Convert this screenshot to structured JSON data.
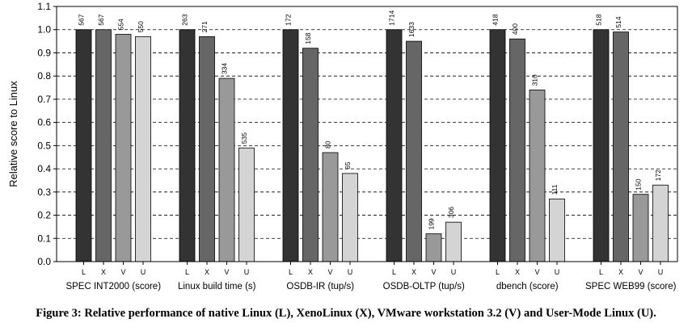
{
  "caption": "Figure 3: Relative performance of native Linux (L), XenoLinux (X), VMware workstation 3.2 (V) and User-Mode Linux (U).",
  "chart_data": {
    "type": "bar",
    "ylabel": "Relative score to Linux",
    "ylim": [
      0,
      1.1
    ],
    "yticks": [
      "0.0",
      "0.1",
      "0.2",
      "0.3",
      "0.4",
      "0.5",
      "0.6",
      "0.7",
      "0.8",
      "0.9",
      "1.0",
      "1.1"
    ],
    "grid": "horizontal dashed",
    "systems": [
      "L",
      "X",
      "V",
      "U"
    ],
    "system_colors": [
      "#333333",
      "#666666",
      "#999999",
      "#d4d4d4"
    ],
    "categories": [
      {
        "name": "SPEC INT2000 (score)",
        "relative": [
          1.0,
          1.0,
          0.98,
          0.97
        ],
        "labels": [
          "567",
          "567",
          "554",
          "550"
        ]
      },
      {
        "name": "Linux build time (s)",
        "relative": [
          1.0,
          0.97,
          0.79,
          0.49
        ],
        "labels": [
          "263",
          "271",
          "334",
          "535"
        ]
      },
      {
        "name": "OSDB-IR (tup/s)",
        "relative": [
          1.0,
          0.92,
          0.47,
          0.38
        ],
        "labels": [
          "172",
          "158",
          "80",
          "65"
        ]
      },
      {
        "name": "OSDB-OLTP (tup/s)",
        "relative": [
          1.0,
          0.95,
          0.12,
          0.17
        ],
        "labels": [
          "1714",
          "1633",
          "199",
          "306"
        ]
      },
      {
        "name": "dbench (score)",
        "relative": [
          1.0,
          0.96,
          0.74,
          0.27
        ],
        "labels": [
          "418",
          "400",
          "310",
          "111"
        ]
      },
      {
        "name": "SPEC WEB99 (score)",
        "relative": [
          1.0,
          0.99,
          0.29,
          0.33
        ],
        "labels": [
          "518",
          "514",
          "150",
          "172"
        ]
      }
    ]
  }
}
